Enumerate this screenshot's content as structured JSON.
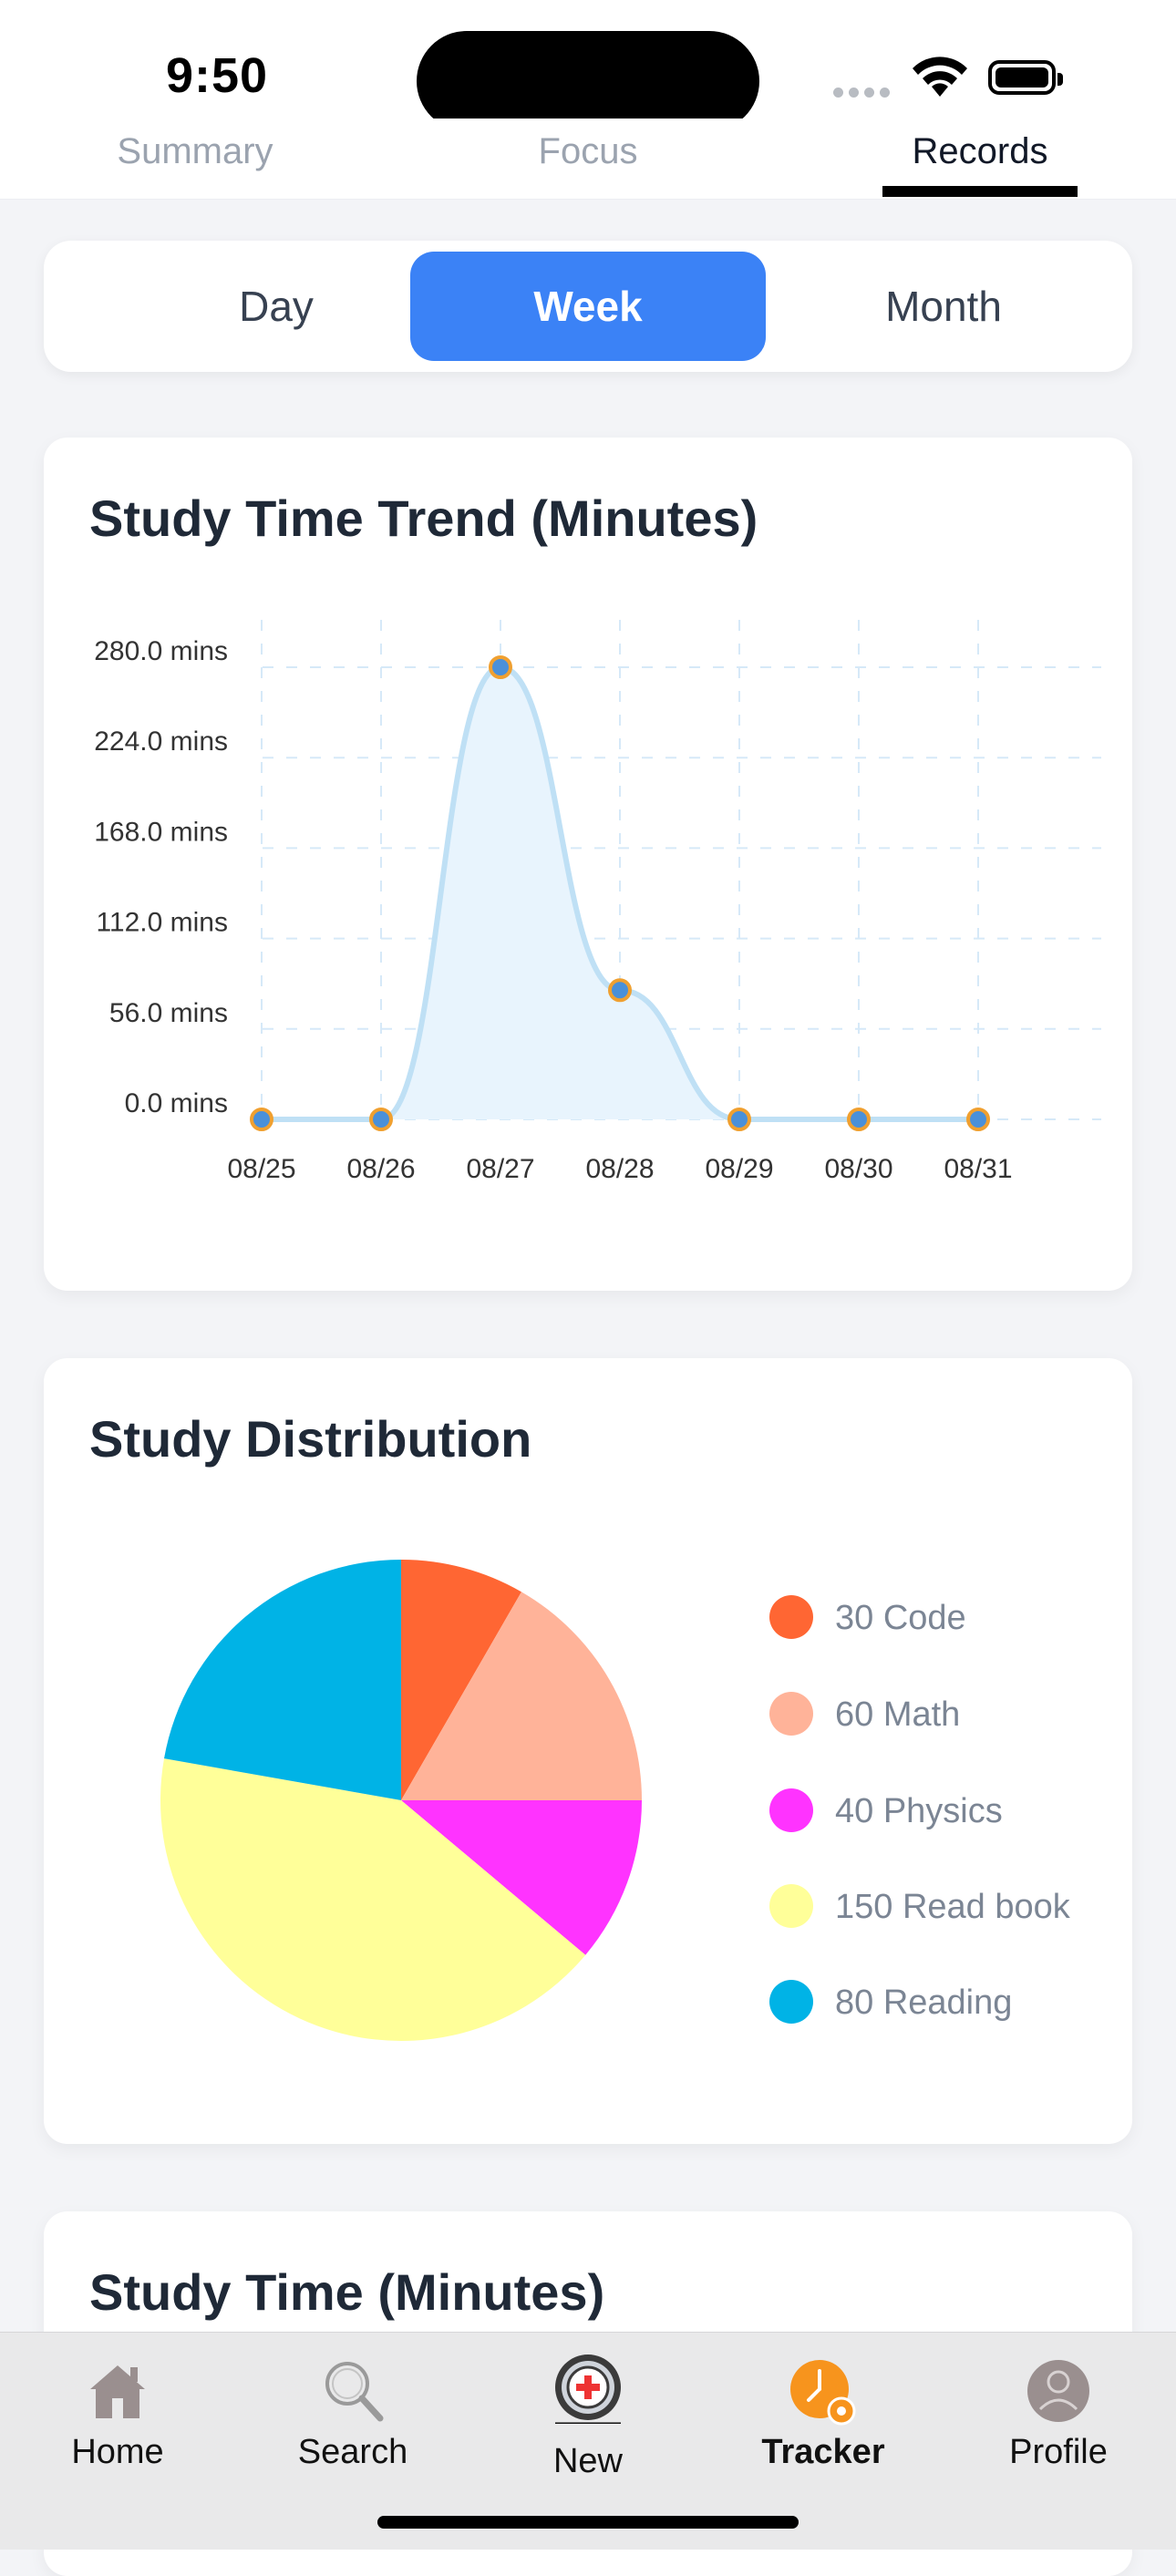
{
  "status_bar": {
    "time": "9:50"
  },
  "top_tabs": [
    {
      "label": "Summary",
      "active": false
    },
    {
      "label": "Focus",
      "active": false
    },
    {
      "label": "Records",
      "active": true
    }
  ],
  "period_selector": {
    "options": [
      "Day",
      "Week",
      "Month"
    ],
    "selected": "Week"
  },
  "trend_card": {
    "title": "Study Time Trend (Minutes)",
    "chart_data": {
      "type": "area",
      "title": "Study Time Trend (Minutes)",
      "x": [
        "08/25",
        "08/26",
        "08/27",
        "08/28",
        "08/29",
        "08/30",
        "08/31"
      ],
      "values": [
        0,
        0,
        280,
        80,
        0,
        0,
        0
      ],
      "y_ticks": [
        "0.0 mins",
        "56.0 mins",
        "112.0 mins",
        "168.0 mins",
        "224.0 mins",
        "280.0 mins"
      ],
      "ylim": [
        0,
        280
      ],
      "grid": true,
      "colors": {
        "line": "#bfe0f5",
        "fill": "#e8f4fd",
        "point_fill": "#4a90d9",
        "point_stroke": "#f0a030",
        "grid": "#d6e9f8"
      }
    }
  },
  "distribution_card": {
    "title": "Study Distribution",
    "chart_data": {
      "type": "pie",
      "categories": [
        "Code",
        "Math",
        "Physics",
        "Read book",
        "Reading"
      ],
      "values": [
        30,
        60,
        40,
        150,
        80
      ],
      "colors": [
        "#ff6633",
        "#ffb399",
        "#ff33ff",
        "#ffff99",
        "#00b3e6"
      ]
    },
    "legend": [
      "30 Code",
      "60 Math",
      "40 Physics",
      "150 Read book",
      "80 Reading"
    ]
  },
  "time_card": {
    "title": "Study Time (Minutes)"
  },
  "tab_bar": {
    "items": [
      {
        "label": "Home",
        "icon": "home-icon",
        "active": false
      },
      {
        "label": "Search",
        "icon": "search-icon",
        "active": false
      },
      {
        "label": "New",
        "icon": "new-record-icon",
        "active": false
      },
      {
        "label": "Tracker",
        "icon": "tracker-icon",
        "active": true
      },
      {
        "label": "Profile",
        "icon": "profile-icon",
        "active": false
      }
    ]
  }
}
